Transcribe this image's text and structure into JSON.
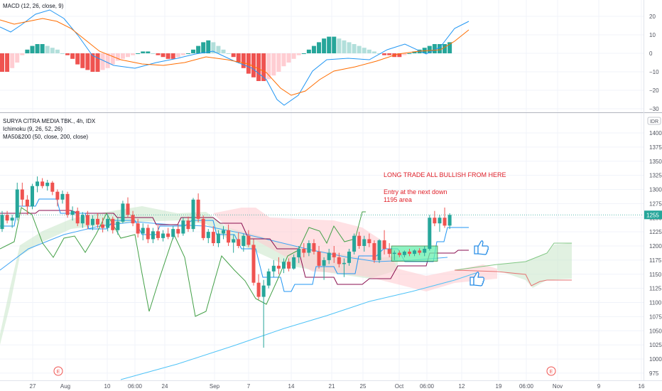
{
  "colors": {
    "bull": "#26a69a",
    "bear": "#ef5350",
    "macd_line": "#2196f3",
    "signal_line": "#ff6d00",
    "hist_bull_strong": "#26a69a",
    "hist_bull_weak": "#b2dfdb",
    "hist_bear_strong": "#ef5350",
    "hist_bear_weak": "#ffcdd2",
    "cloud_bull": "#c8e6c9",
    "cloud_bear": "#ffcdd2",
    "tenkan": "#2196f3",
    "kijun": "#880e4f",
    "chikou": "#43a047",
    "ma50": "#42a5f5",
    "ma200": "#4fc3f7",
    "entry_box": "#4caf50",
    "annotation": "#e0212a",
    "thumb": "#1e88e5"
  },
  "macd_panel": {
    "label": "MACD (12, 26, close, 9)",
    "ticks": [
      "20",
      "10",
      "0",
      "−10",
      "−20",
      "−30"
    ]
  },
  "price_panel": {
    "symbol_label": "SURYA CITRA MEDIA TBK., 4h, IDX",
    "ichimoku_label": "Ichimoku (9, 26, 52, 26)",
    "ma_label": "MA50&200 (50, close, 200, close)",
    "currency": "IDR",
    "last_price": "1255",
    "ticks": [
      "1400",
      "1375",
      "1350",
      "1325",
      "1300",
      "1275",
      "1250",
      "1225",
      "1200",
      "1175",
      "1150",
      "1125",
      "1100",
      "1075",
      "1050",
      "1025",
      "1000",
      "975"
    ]
  },
  "time_axis": {
    "labels": [
      "27",
      "Aug",
      "10",
      "06:00",
      "24",
      "Sep",
      "7",
      "14",
      "21",
      "25",
      "Oct",
      "06:00",
      "12",
      "19",
      "06:00",
      "Nov",
      "9",
      "16"
    ]
  },
  "annotations": {
    "headline": "LONG TRADE ALL BULLISH FROM HERE",
    "entry_line1": "Entry at the next down",
    "entry_line2": "1195 area"
  },
  "events": [
    "E",
    "E"
  ],
  "chart_data": {
    "type": "candlestick",
    "title": "SURYA CITRA MEDIA TBK., 4h, IDX",
    "ylim": [
      975,
      1400
    ],
    "candles": [
      [
        1230,
        1262,
        1225,
        1255
      ],
      [
        1255,
        1262,
        1240,
        1245
      ],
      [
        1245,
        1255,
        1232,
        1250
      ],
      [
        1250,
        1312,
        1245,
        1300
      ],
      [
        1300,
        1312,
        1270,
        1282
      ],
      [
        1282,
        1290,
        1255,
        1270
      ],
      [
        1270,
        1310,
        1265,
        1306
      ],
      [
        1306,
        1323,
        1295,
        1314
      ],
      [
        1314,
        1320,
        1302,
        1306
      ],
      [
        1306,
        1317,
        1298,
        1312
      ],
      [
        1312,
        1315,
        1290,
        1296
      ],
      [
        1296,
        1300,
        1270,
        1282
      ],
      [
        1282,
        1298,
        1275,
        1292
      ],
      [
        1292,
        1296,
        1250,
        1255
      ],
      [
        1255,
        1270,
        1245,
        1262
      ],
      [
        1262,
        1268,
        1235,
        1240
      ],
      [
        1240,
        1260,
        1232,
        1255
      ],
      [
        1255,
        1262,
        1230,
        1237
      ],
      [
        1237,
        1254,
        1228,
        1248
      ],
      [
        1248,
        1258,
        1232,
        1238
      ],
      [
        1238,
        1250,
        1224,
        1232
      ],
      [
        1232,
        1256,
        1226,
        1248
      ],
      [
        1248,
        1252,
        1222,
        1228
      ],
      [
        1228,
        1250,
        1220,
        1243
      ],
      [
        1243,
        1280,
        1240,
        1275
      ],
      [
        1275,
        1286,
        1250,
        1255
      ],
      [
        1255,
        1262,
        1235,
        1240
      ],
      [
        1240,
        1248,
        1215,
        1222
      ],
      [
        1222,
        1240,
        1210,
        1232
      ],
      [
        1232,
        1238,
        1205,
        1212
      ],
      [
        1212,
        1232,
        1205,
        1226
      ],
      [
        1226,
        1236,
        1210,
        1214
      ],
      [
        1214,
        1228,
        1208,
        1222
      ],
      [
        1222,
        1232,
        1212,
        1216
      ],
      [
        1216,
        1235,
        1212,
        1230
      ],
      [
        1230,
        1240,
        1215,
        1222
      ],
      [
        1222,
        1250,
        1218,
        1245
      ],
      [
        1245,
        1252,
        1225,
        1230
      ],
      [
        1230,
        1285,
        1225,
        1282
      ],
      [
        1282,
        1293,
        1242,
        1248
      ],
      [
        1248,
        1254,
        1210,
        1214
      ],
      [
        1214,
        1230,
        1205,
        1225
      ],
      [
        1225,
        1235,
        1200,
        1205
      ],
      [
        1205,
        1228,
        1198,
        1222
      ],
      [
        1222,
        1235,
        1212,
        1228
      ],
      [
        1228,
        1238,
        1200,
        1206
      ],
      [
        1206,
        1220,
        1188,
        1212
      ],
      [
        1212,
        1224,
        1196,
        1200
      ],
      [
        1200,
        1222,
        1190,
        1218
      ],
      [
        1218,
        1228,
        1198,
        1202
      ],
      [
        1202,
        1212,
        1130,
        1135
      ],
      [
        1135,
        1150,
        1105,
        1110
      ],
      [
        1110,
        1140,
        1020,
        1130
      ],
      [
        1130,
        1160,
        1125,
        1155
      ],
      [
        1155,
        1175,
        1145,
        1165
      ],
      [
        1165,
        1180,
        1150,
        1160
      ],
      [
        1160,
        1178,
        1152,
        1172
      ],
      [
        1172,
        1178,
        1155,
        1160
      ],
      [
        1160,
        1185,
        1158,
        1180
      ],
      [
        1180,
        1200,
        1170,
        1195
      ],
      [
        1195,
        1205,
        1180,
        1188
      ],
      [
        1188,
        1210,
        1182,
        1205
      ],
      [
        1205,
        1212,
        1185,
        1190
      ],
      [
        1190,
        1200,
        1160,
        1165
      ],
      [
        1165,
        1180,
        1140,
        1175
      ],
      [
        1175,
        1195,
        1168,
        1188
      ],
      [
        1188,
        1200,
        1170,
        1180
      ],
      [
        1180,
        1188,
        1162,
        1168
      ],
      [
        1168,
        1178,
        1145,
        1170
      ],
      [
        1170,
        1195,
        1165,
        1190
      ],
      [
        1190,
        1222,
        1185,
        1218
      ],
      [
        1218,
        1225,
        1195,
        1200
      ],
      [
        1200,
        1218,
        1190,
        1212
      ],
      [
        1212,
        1222,
        1198,
        1205
      ],
      [
        1205,
        1210,
        1170,
        1175
      ],
      [
        1175,
        1212,
        1170,
        1210
      ],
      [
        1210,
        1228,
        1185,
        1195
      ],
      [
        1195,
        1205,
        1180,
        1186
      ],
      [
        1186,
        1192,
        1175,
        1188
      ],
      [
        1188,
        1192,
        1180,
        1184
      ],
      [
        1184,
        1192,
        1180,
        1190
      ],
      [
        1190,
        1195,
        1182,
        1186
      ],
      [
        1186,
        1194,
        1182,
        1192
      ],
      [
        1192,
        1196,
        1184,
        1188
      ],
      [
        1188,
        1200,
        1182,
        1195
      ],
      [
        1195,
        1255,
        1192,
        1250
      ],
      [
        1250,
        1262,
        1235,
        1240
      ],
      [
        1240,
        1255,
        1225,
        1250
      ],
      [
        1250,
        1268,
        1232,
        1236
      ],
      [
        1236,
        1258,
        1230,
        1255
      ]
    ],
    "macd_histogram": [
      -10,
      -10,
      -8,
      -5,
      -1,
      2,
      4,
      5,
      5,
      4,
      3,
      2,
      0,
      -1,
      -3,
      -6,
      -8,
      -9,
      -10,
      -10,
      -9,
      -8,
      -6,
      -4,
      -3,
      -2,
      -1,
      0,
      1,
      1,
      0,
      -1,
      -2,
      -3,
      -3,
      -2,
      -1,
      0,
      2,
      4,
      6,
      7,
      6,
      4,
      2,
      0,
      -2,
      -5,
      -8,
      -11,
      -13,
      -15,
      -15,
      -14,
      -12,
      -10,
      -7,
      -5,
      -3,
      -1,
      0,
      2,
      4,
      6,
      8,
      9,
      9,
      8,
      7,
      6,
      5,
      4,
      3,
      2,
      1,
      0,
      -1,
      -1,
      -2,
      -2,
      -1,
      0,
      1,
      2,
      3,
      4,
      5,
      5,
      5,
      6
    ],
    "xlabel": "",
    "ylabel": ""
  }
}
